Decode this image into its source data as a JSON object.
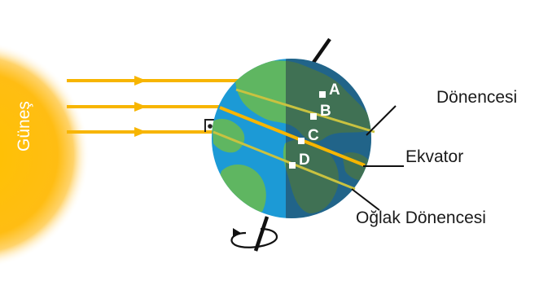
{
  "labels": {
    "sun": "Güneş",
    "tropic_cancer": "Dönencesi",
    "equator": "Ekvator",
    "tropic_capricorn": "Oğlak Dönencesi"
  },
  "points": [
    "A",
    "B",
    "C",
    "D"
  ],
  "colors": {
    "sun": "#fdb813",
    "rays": "#f7b500",
    "ocean": "#1c9ad6",
    "land": "#5fb661",
    "night_shade": "#27394a",
    "tropic_line": "#c9c240",
    "equator_line": "#f7b500"
  }
}
